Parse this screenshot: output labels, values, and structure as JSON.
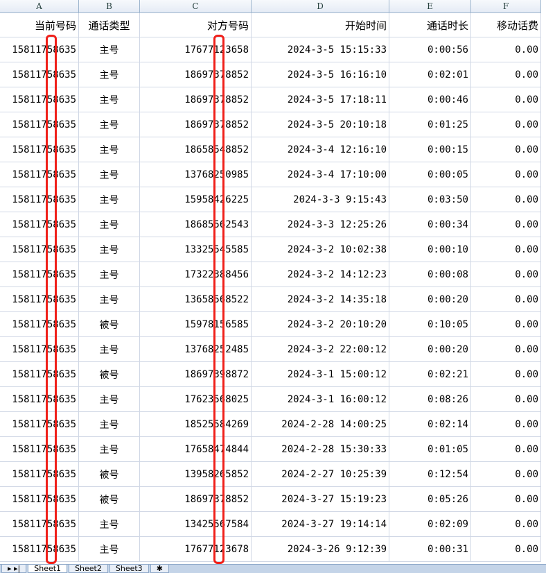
{
  "columns": [
    "A",
    "B",
    "C",
    "D",
    "E",
    "F"
  ],
  "headers": [
    "当前号码",
    "通话类型",
    "对方号码",
    "开始时间",
    "通话时长",
    "移动话费"
  ],
  "rows": [
    [
      "15811758635",
      "主号",
      "17677123658",
      "2024-3-5 15:15:33",
      "0:00:56",
      "0.00"
    ],
    [
      "15811758635",
      "主号",
      "18697378852",
      "2024-3-5 16:16:10",
      "0:02:01",
      "0.00"
    ],
    [
      "15811758635",
      "主号",
      "18697378852",
      "2024-3-5 17:18:11",
      "0:00:46",
      "0.00"
    ],
    [
      "15811758635",
      "主号",
      "18697378852",
      "2024-3-5 20:10:18",
      "0:01:25",
      "0.00"
    ],
    [
      "15811758635",
      "主号",
      "18658548852",
      "2024-3-4 12:16:10",
      "0:00:15",
      "0.00"
    ],
    [
      "15811758635",
      "主号",
      "13768250985",
      "2024-3-4 17:10:00",
      "0:00:05",
      "0.00"
    ],
    [
      "15811758635",
      "主号",
      "15958426225",
      "2024-3-3 9:15:43",
      "0:03:50",
      "0.00"
    ],
    [
      "15811758635",
      "主号",
      "18685562543",
      "2024-3-3 12:25:26",
      "0:00:34",
      "0.00"
    ],
    [
      "15811758635",
      "主号",
      "13325545585",
      "2024-3-2 10:02:38",
      "0:00:10",
      "0.00"
    ],
    [
      "15811758635",
      "主号",
      "17322388456",
      "2024-3-2 14:12:23",
      "0:00:08",
      "0.00"
    ],
    [
      "15811758635",
      "主号",
      "13658568522",
      "2024-3-2 14:35:18",
      "0:00:20",
      "0.00"
    ],
    [
      "15811758635",
      "被号",
      "15978156585",
      "2024-3-2 20:10:20",
      "0:10:05",
      "0.00"
    ],
    [
      "15811758635",
      "主号",
      "13768252485",
      "2024-3-2 22:00:12",
      "0:00:20",
      "0.00"
    ],
    [
      "15811758635",
      "被号",
      "18697398872",
      "2024-3-1 15:00:12",
      "0:02:21",
      "0.00"
    ],
    [
      "15811758635",
      "主号",
      "17623568025",
      "2024-3-1 16:00:12",
      "0:08:26",
      "0.00"
    ],
    [
      "15811758635",
      "主号",
      "18525584269",
      "2024-2-28 14:00:25",
      "0:02:14",
      "0.00"
    ],
    [
      "15811758635",
      "主号",
      "17658474844",
      "2024-2-28 15:30:33",
      "0:01:05",
      "0.00"
    ],
    [
      "15811758635",
      "被号",
      "13958265852",
      "2024-2-27 10:25:39",
      "0:12:54",
      "0.00"
    ],
    [
      "15811758635",
      "被号",
      "18697378852",
      "2024-3-27 15:19:23",
      "0:05:26",
      "0.00"
    ],
    [
      "15811758635",
      "主号",
      "13425567584",
      "2024-3-27 19:14:14",
      "0:02:09",
      "0.00"
    ],
    [
      "15811758635",
      "主号",
      "17677123678",
      "2024-3-26 9:12:39",
      "0:00:31",
      "0.00"
    ]
  ],
  "sheet_tabs": [
    "Sheet1",
    "Sheet2",
    "Sheet3"
  ],
  "mask_color": "#f0201a"
}
